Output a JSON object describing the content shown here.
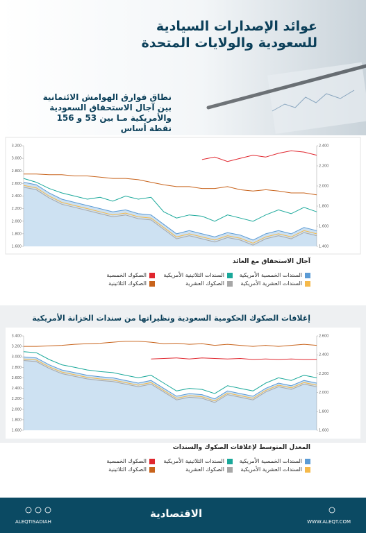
{
  "header": {
    "title_line1": "عوائد الإصدارات السيادية",
    "title_line2": "للسعودية والولايات المتحدة"
  },
  "chart_data": [
    {
      "type": "line",
      "annotation": [
        "نطاق فوارق الهوامش الائتمانية",
        "بين آجال الاستحقاق السعودية",
        "والأمريكية مـا بين 53 و 156",
        "نقطة أساس"
      ],
      "legend_title": "آجال الاستحقاق مع العائد",
      "ylim": [
        1.6,
        3.2
      ],
      "yticks": [
        {
          "value": 1.6,
          "label": "1.600"
        },
        {
          "value": 1.8,
          "label": "1.800"
        },
        {
          "value": 2.0,
          "label": "2.000"
        },
        {
          "value": 2.2,
          "label": "2.200"
        },
        {
          "value": 2.4,
          "label": "2.400"
        },
        {
          "value": 2.6,
          "label": "2.600"
        },
        {
          "value": 2.8,
          "label": "2.800"
        },
        {
          "value": 3.0,
          "label": "3.000"
        },
        {
          "value": 3.2,
          "label": "3.200"
        }
      ],
      "y2lim": [
        1.4,
        2.4
      ],
      "y2ticks": [
        {
          "value": 1.4,
          "label": "1.400"
        },
        {
          "value": 1.6,
          "label": "1.600"
        },
        {
          "value": 1.8,
          "label": "1.800"
        },
        {
          "value": 2.0,
          "label": "2.000"
        },
        {
          "value": 2.2,
          "label": "2.200"
        },
        {
          "value": 2.4,
          "label": "2.400"
        }
      ],
      "series": [
        {
          "name": "السندات الخمسية الأمريكية",
          "color": "#5b9bd5",
          "fill": true,
          "values": [
            2.62,
            2.58,
            2.45,
            2.35,
            2.3,
            2.25,
            2.2,
            2.15,
            2.18,
            2.12,
            2.1,
            1.95,
            1.8,
            1.85,
            1.8,
            1.75,
            1.82,
            1.78,
            1.7,
            1.8,
            1.85,
            1.8,
            1.9,
            1.85
          ]
        },
        {
          "name": "السندات الثلاثينية الأمريكية",
          "color": "#1aa89a",
          "values": [
            2.68,
            2.62,
            2.52,
            2.45,
            2.4,
            2.35,
            2.38,
            2.32,
            2.4,
            2.35,
            2.38,
            2.15,
            2.05,
            2.1,
            2.08,
            2.0,
            2.1,
            2.05,
            2.0,
            2.1,
            2.18,
            2.12,
            2.22,
            2.15
          ]
        },
        {
          "name": "الصكوك الخمسية",
          "color": "#e0262e",
          "values": [
            null,
            null,
            null,
            null,
            null,
            null,
            null,
            null,
            null,
            null,
            null,
            null,
            null,
            null,
            2.98,
            3.02,
            2.95,
            3.0,
            3.05,
            3.02,
            3.08,
            3.12,
            3.1,
            3.05
          ]
        },
        {
          "name": "السندات العشرية الأمريكية",
          "color": "#f5b94a",
          "values": [
            2.57,
            2.53,
            2.4,
            2.3,
            2.25,
            2.2,
            2.15,
            2.1,
            2.13,
            2.07,
            2.05,
            1.9,
            1.75,
            1.8,
            1.75,
            1.7,
            1.77,
            1.73,
            1.65,
            1.75,
            1.8,
            1.75,
            1.85,
            1.8
          ]
        },
        {
          "name": "الصكوك العشرية",
          "color": "#a7a7a7",
          "values": [
            2.54,
            2.5,
            2.37,
            2.27,
            2.22,
            2.17,
            2.12,
            2.07,
            2.1,
            2.04,
            2.02,
            1.87,
            1.72,
            1.77,
            1.72,
            1.67,
            1.74,
            1.7,
            1.62,
            1.72,
            1.77,
            1.72,
            1.82,
            1.77
          ]
        },
        {
          "name": "الصكوك الثلاثينية",
          "color": "#c8631b",
          "values": [
            2.75,
            2.75,
            2.74,
            2.74,
            2.72,
            2.72,
            2.7,
            2.68,
            2.68,
            2.66,
            2.62,
            2.58,
            2.55,
            2.55,
            2.52,
            2.52,
            2.55,
            2.5,
            2.48,
            2.5,
            2.48,
            2.45,
            2.45,
            2.42
          ]
        }
      ]
    },
    {
      "type": "line",
      "title": "إغلاقات الصكوك الحكومية السعودية ونظيراتها من سندات الخزانة الأمريكية",
      "legend_title": "المعدل المتوسط لإغلاقات الصكوك والسندات",
      "ylim": [
        1.6,
        3.4
      ],
      "yticks": [
        {
          "value": 1.6,
          "label": "1.600"
        },
        {
          "value": 1.8,
          "label": "1.800"
        },
        {
          "value": 2.0,
          "label": "2.000"
        },
        {
          "value": 2.2,
          "label": "2.200"
        },
        {
          "value": 2.4,
          "label": "2.400"
        },
        {
          "value": 2.6,
          "label": "2.600"
        },
        {
          "value": 2.8,
          "label": "2.800"
        },
        {
          "value": 3.0,
          "label": "3.000"
        },
        {
          "value": 3.2,
          "label": "3.200"
        },
        {
          "value": 3.4,
          "label": "3.400"
        }
      ],
      "y2lim": [
        1.6,
        2.6
      ],
      "y2ticks": [
        {
          "value": 1.6,
          "label": "1.600"
        },
        {
          "value": 1.8,
          "label": "1.800"
        },
        {
          "value": 2.0,
          "label": "2.000"
        },
        {
          "value": 2.2,
          "label": "2.200"
        },
        {
          "value": 2.4,
          "label": "2.400"
        },
        {
          "value": 2.6,
          "label": "2.600"
        }
      ],
      "series": [
        {
          "name": "السندات الخمسية الأمريكية",
          "color": "#5b9bd5",
          "fill": true,
          "values": [
            3.0,
            2.98,
            2.85,
            2.75,
            2.7,
            2.65,
            2.62,
            2.6,
            2.55,
            2.5,
            2.55,
            2.4,
            2.25,
            2.3,
            2.28,
            2.2,
            2.35,
            2.3,
            2.25,
            2.4,
            2.5,
            2.45,
            2.55,
            2.5
          ]
        },
        {
          "name": "السندات الثلاثينية الأمريكية",
          "color": "#1aa89a",
          "values": [
            3.1,
            3.08,
            2.95,
            2.85,
            2.8,
            2.75,
            2.72,
            2.7,
            2.65,
            2.6,
            2.65,
            2.5,
            2.35,
            2.4,
            2.38,
            2.3,
            2.45,
            2.4,
            2.35,
            2.5,
            2.6,
            2.55,
            2.65,
            2.6
          ]
        },
        {
          "name": "الصكوك الخمسية",
          "color": "#e0262e",
          "values": [
            null,
            null,
            null,
            null,
            null,
            null,
            null,
            null,
            null,
            null,
            2.96,
            2.97,
            2.98,
            2.96,
            2.98,
            2.97,
            2.96,
            2.97,
            2.95,
            2.96,
            2.95,
            2.96,
            2.95,
            2.95
          ]
        },
        {
          "name": "السندات العشرية الأمريكية",
          "color": "#f5b94a",
          "values": [
            2.96,
            2.94,
            2.81,
            2.71,
            2.66,
            2.61,
            2.58,
            2.56,
            2.51,
            2.46,
            2.51,
            2.36,
            2.21,
            2.26,
            2.24,
            2.16,
            2.31,
            2.26,
            2.21,
            2.36,
            2.46,
            2.41,
            2.51,
            2.46
          ]
        },
        {
          "name": "الصكوك العشرية",
          "color": "#a7a7a7",
          "values": [
            2.93,
            2.91,
            2.78,
            2.68,
            2.63,
            2.58,
            2.55,
            2.53,
            2.48,
            2.43,
            2.48,
            2.33,
            2.18,
            2.23,
            2.21,
            2.13,
            2.28,
            2.23,
            2.18,
            2.33,
            2.43,
            2.38,
            2.48,
            2.43
          ]
        },
        {
          "name": "الصكوك الثلاثينية",
          "color": "#c8631b",
          "values": [
            3.2,
            3.2,
            3.21,
            3.22,
            3.24,
            3.25,
            3.26,
            3.28,
            3.3,
            3.3,
            3.28,
            3.25,
            3.26,
            3.24,
            3.25,
            3.22,
            3.24,
            3.22,
            3.2,
            3.22,
            3.2,
            3.22,
            3.24,
            3.22
          ]
        }
      ]
    }
  ],
  "footer": {
    "social": "ALEQTISADIAH",
    "logo": "الاقتصادية",
    "url": "WWW.ALEQT.COM"
  }
}
